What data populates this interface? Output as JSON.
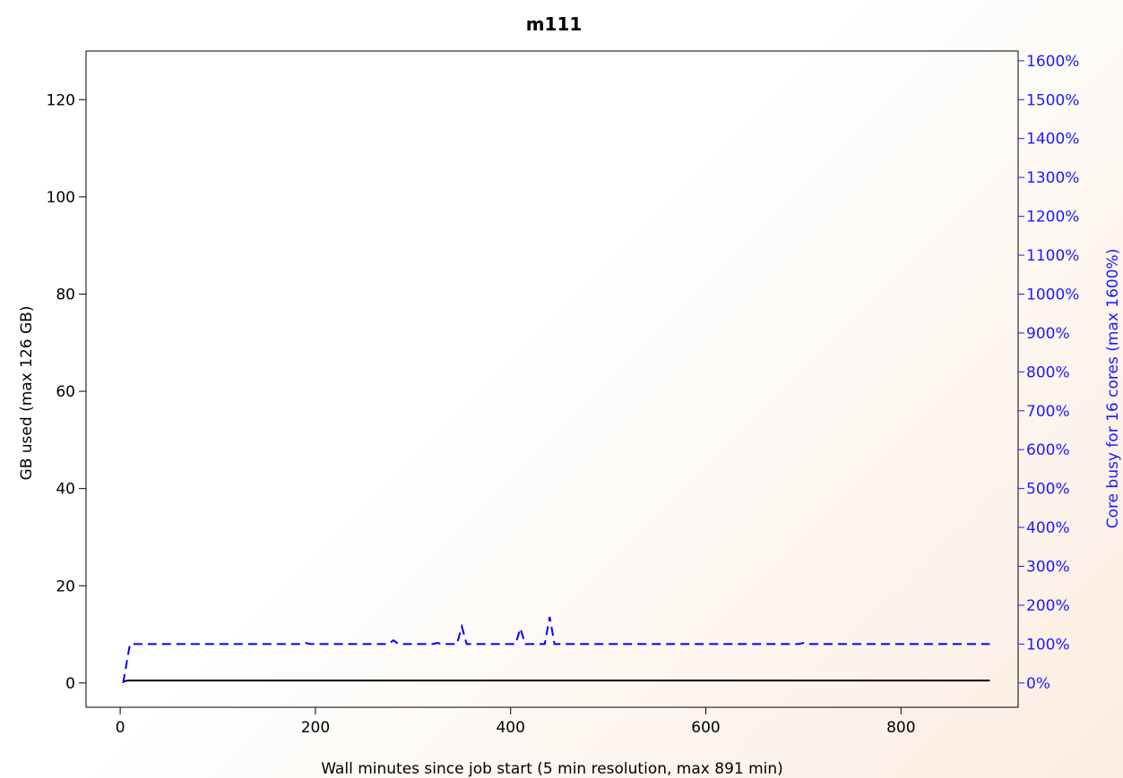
{
  "chart_data": {
    "type": "line",
    "title": "m111",
    "xlabel": "Wall minutes since job start (5 min resolution, max 891 min)",
    "ylabel_left": "GB used (max 126 GB)",
    "ylabel_right": "Core busy for 16 cores (max 1600%)",
    "xlim": [
      -35,
      920
    ],
    "ylim_left": [
      -5,
      130
    ],
    "ylim_right": [
      -62.5,
      1625
    ],
    "x_ticks": [
      0,
      200,
      400,
      600,
      800
    ],
    "y_left_ticks": [
      0,
      20,
      40,
      60,
      80,
      100,
      120
    ],
    "y_right_ticks": [
      0,
      100,
      200,
      300,
      400,
      500,
      600,
      700,
      800,
      900,
      1000,
      1100,
      1200,
      1300,
      1400,
      1500,
      1600
    ],
    "y_right_tick_labels": [
      "0%",
      "100%",
      "200%",
      "300%",
      "400%",
      "500%",
      "600%",
      "700%",
      "800%",
      "900%",
      "1000%",
      "1100%",
      "1200%",
      "1300%",
      "1400%",
      "1500%",
      "1600%"
    ],
    "grid": false,
    "colors": {
      "memory": "#000000",
      "cpu": "#0000ff",
      "right_axis": "#1a1aff"
    },
    "series": [
      {
        "axis": "left",
        "style": "solid",
        "x": [
          3,
          8,
          891
        ],
        "y": [
          0.3,
          0.5,
          0.5
        ]
      },
      {
        "axis": "right",
        "style": "dashed",
        "x": [
          3,
          10,
          185,
          190,
          195,
          275,
          280,
          285,
          320,
          325,
          330,
          345,
          350,
          355,
          360,
          405,
          410,
          415,
          420,
          435,
          440,
          445,
          450,
          695,
          700,
          705,
          891
        ],
        "y": [
          0,
          100,
          100,
          103,
          100,
          100,
          110,
          100,
          100,
          103,
          100,
          100,
          145,
          100,
          100,
          100,
          140,
          100,
          100,
          100,
          170,
          100,
          100,
          100,
          103,
          100,
          100
        ]
      }
    ]
  }
}
